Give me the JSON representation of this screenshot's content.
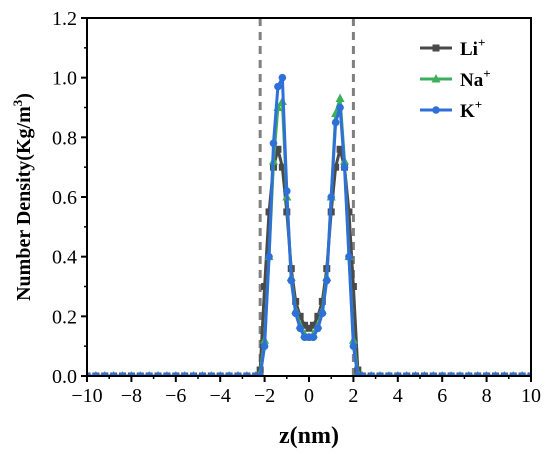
{
  "chart_data": {
    "type": "line",
    "xlabel": "z(nm)",
    "ylabel_main": "Number Density(Kg/m",
    "ylabel_sup": "3",
    "ylabel_close": ")",
    "xlim": [
      -10,
      10
    ],
    "ylim": [
      0.0,
      1.2
    ],
    "xticks": [
      -10,
      -8,
      -6,
      -4,
      -2,
      0,
      2,
      4,
      6,
      8,
      10
    ],
    "xtick_labels": [
      "−10",
      "−8",
      "−6",
      "−4",
      "−2",
      "0",
      "2",
      "4",
      "6",
      "8",
      "10"
    ],
    "yticks": [
      0.0,
      0.2,
      0.4,
      0.6,
      0.8,
      1.0,
      1.2
    ],
    "ytick_labels": [
      "0.0",
      "0.2",
      "0.4",
      "0.6",
      "0.8",
      "1.0",
      "1.2"
    ],
    "vlines": [
      -2.2,
      2.0
    ],
    "legend_position": "top-right",
    "series": [
      {
        "name": "Li",
        "name_sup": "+",
        "color": "#4a4a4a",
        "marker": "square",
        "x": [
          -10,
          -9.6,
          -9.2,
          -8.8,
          -8.4,
          -8.0,
          -7.6,
          -7.2,
          -6.8,
          -6.4,
          -6.0,
          -5.6,
          -5.2,
          -4.8,
          -4.4,
          -4.0,
          -3.6,
          -3.2,
          -2.8,
          -2.4,
          -2.2,
          -2.0,
          -1.8,
          -1.6,
          -1.4,
          -1.2,
          -1.0,
          -0.8,
          -0.6,
          -0.4,
          -0.2,
          0.0,
          0.2,
          0.4,
          0.6,
          0.8,
          1.0,
          1.2,
          1.4,
          1.6,
          1.8,
          2.0,
          2.2,
          2.4,
          2.8,
          3.2,
          3.6,
          4.0,
          4.4,
          4.8,
          5.2,
          5.6,
          6.0,
          6.4,
          6.8,
          7.2,
          7.6,
          8.0,
          8.4,
          8.8,
          9.2,
          9.6,
          10.0
        ],
        "y": [
          0,
          0,
          0,
          0,
          0,
          0,
          0,
          0,
          0,
          0,
          0,
          0,
          0,
          0,
          0,
          0,
          0,
          0,
          0,
          0.0,
          0.02,
          0.3,
          0.55,
          0.7,
          0.76,
          0.7,
          0.55,
          0.36,
          0.25,
          0.2,
          0.17,
          0.16,
          0.17,
          0.2,
          0.25,
          0.36,
          0.55,
          0.7,
          0.76,
          0.7,
          0.55,
          0.3,
          0.02,
          0,
          0,
          0,
          0,
          0,
          0,
          0,
          0,
          0,
          0,
          0,
          0,
          0,
          0,
          0,
          0,
          0,
          0,
          0,
          0
        ]
      },
      {
        "name": "Na",
        "name_sup": "+",
        "color": "#3dae5e",
        "marker": "triangle",
        "x": [
          -10,
          -9.6,
          -9.2,
          -8.8,
          -8.4,
          -8.0,
          -7.6,
          -7.2,
          -6.8,
          -6.4,
          -6.0,
          -5.6,
          -5.2,
          -4.8,
          -4.4,
          -4.0,
          -3.6,
          -3.2,
          -2.8,
          -2.4,
          -2.2,
          -2.0,
          -1.8,
          -1.6,
          -1.4,
          -1.2,
          -1.0,
          -0.8,
          -0.6,
          -0.4,
          -0.2,
          0.0,
          0.2,
          0.4,
          0.6,
          0.8,
          1.0,
          1.2,
          1.4,
          1.6,
          1.8,
          2.0,
          2.2,
          2.4,
          2.8,
          3.2,
          3.6,
          4.0,
          4.4,
          4.8,
          5.2,
          5.6,
          6.0,
          6.4,
          6.8,
          7.2,
          7.6,
          8.0,
          8.4,
          8.8,
          9.2,
          9.6,
          10.0
        ],
        "y": [
          0,
          0,
          0,
          0,
          0,
          0,
          0,
          0,
          0,
          0,
          0,
          0,
          0,
          0,
          0,
          0,
          0,
          0,
          0,
          0.0,
          0.01,
          0.12,
          0.4,
          0.72,
          0.9,
          0.92,
          0.6,
          0.33,
          0.22,
          0.17,
          0.14,
          0.13,
          0.14,
          0.17,
          0.22,
          0.33,
          0.6,
          0.88,
          0.93,
          0.72,
          0.4,
          0.12,
          0.01,
          0,
          0,
          0,
          0,
          0,
          0,
          0,
          0,
          0,
          0,
          0,
          0,
          0,
          0,
          0,
          0,
          0,
          0,
          0,
          0
        ]
      },
      {
        "name": "K",
        "name_sup": "+",
        "color": "#2f6fd8",
        "marker": "circle",
        "x": [
          -10,
          -9.6,
          -9.2,
          -8.8,
          -8.4,
          -8.0,
          -7.6,
          -7.2,
          -6.8,
          -6.4,
          -6.0,
          -5.6,
          -5.2,
          -4.8,
          -4.4,
          -4.0,
          -3.6,
          -3.2,
          -2.8,
          -2.4,
          -2.2,
          -2.0,
          -1.8,
          -1.6,
          -1.4,
          -1.2,
          -1.0,
          -0.8,
          -0.6,
          -0.4,
          -0.2,
          0.0,
          0.2,
          0.4,
          0.6,
          0.8,
          1.0,
          1.2,
          1.4,
          1.6,
          1.8,
          2.0,
          2.2,
          2.4,
          2.8,
          3.2,
          3.6,
          4.0,
          4.4,
          4.8,
          5.2,
          5.6,
          6.0,
          6.4,
          6.8,
          7.2,
          7.6,
          8.0,
          8.4,
          8.8,
          9.2,
          9.6,
          10.0
        ],
        "y": [
          0,
          0,
          0,
          0,
          0,
          0,
          0,
          0,
          0,
          0,
          0,
          0,
          0,
          0,
          0,
          0,
          0,
          0,
          0,
          0.0,
          0.0,
          0.1,
          0.4,
          0.78,
          0.97,
          1.0,
          0.62,
          0.32,
          0.21,
          0.16,
          0.13,
          0.13,
          0.13,
          0.16,
          0.21,
          0.32,
          0.6,
          0.85,
          0.9,
          0.7,
          0.4,
          0.1,
          0.0,
          0,
          0,
          0,
          0,
          0,
          0,
          0,
          0,
          0,
          0,
          0,
          0,
          0,
          0,
          0,
          0,
          0,
          0,
          0,
          0
        ]
      }
    ]
  }
}
